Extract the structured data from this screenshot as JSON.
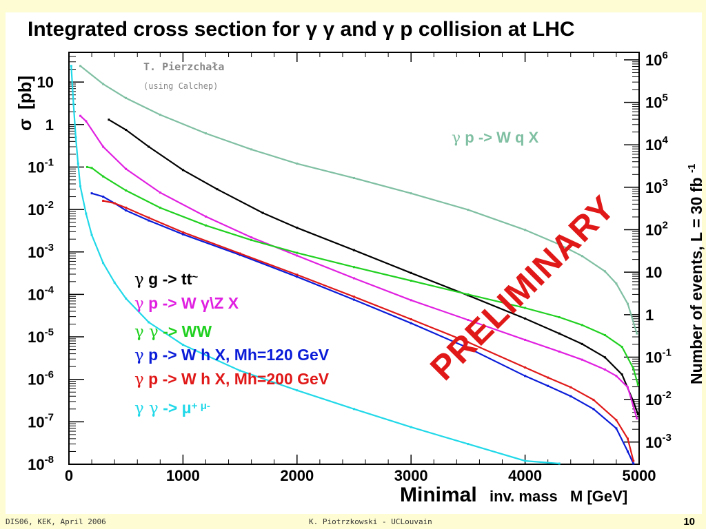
{
  "slide": {
    "footer_left": "DIS06, KEK, April 2006",
    "footer_center": "K. Piotrzkowski - UCLouvain",
    "page_number": "10"
  },
  "chart_data": {
    "type": "line",
    "title_parts": [
      "Integrated cross section for ",
      "γ γ",
      " and ",
      "γ",
      " p collision at LHC"
    ],
    "xlabel_parts": [
      "Minimal",
      "inv. mass",
      "M [GeV]"
    ],
    "ylabel_parts": [
      "σ",
      "[pb]"
    ],
    "y2label_parts": [
      "Number of events,  L = 30 fb",
      "-1"
    ],
    "author_line1": "T. Pierzchała",
    "author_line2": "(using Calchep)",
    "watermark": "PRELIMINARY",
    "xlim": [
      0,
      5000
    ],
    "ylim_log10": [
      -8,
      1.7
    ],
    "y_scale": "log",
    "x_ticks": [
      "0",
      "1000",
      "2000",
      "3000",
      "4000",
      "5000"
    ],
    "y_ticks": [
      {
        "base": "10",
        "exp": "-8"
      },
      {
        "base": "10",
        "exp": "-7"
      },
      {
        "base": "10",
        "exp": "-6"
      },
      {
        "base": "10",
        "exp": "-5"
      },
      {
        "base": "10",
        "exp": "-4"
      },
      {
        "base": "10",
        "exp": "-3"
      },
      {
        "base": "10",
        "exp": "-2"
      },
      {
        "base": "10",
        "exp": "-1"
      },
      {
        "base": "1",
        "exp": ""
      },
      {
        "base": "10",
        "exp": ""
      }
    ],
    "y2_ticks": [
      {
        "base": "10",
        "exp": "-3"
      },
      {
        "base": "10",
        "exp": "-2"
      },
      {
        "base": "10",
        "exp": "-1"
      },
      {
        "base": "1",
        "exp": ""
      },
      {
        "base": "10",
        "exp": ""
      },
      {
        "base": "10",
        "exp": "2"
      },
      {
        "base": "10",
        "exp": "3"
      },
      {
        "base": "10",
        "exp": "4"
      },
      {
        "base": "10",
        "exp": "5"
      },
      {
        "base": "10",
        "exp": "6"
      }
    ],
    "series": [
      {
        "name": "γ p -> W q X",
        "color": "#7fbfa2",
        "x": [
          100,
          300,
          500,
          800,
          1200,
          1600,
          2000,
          2500,
          3000,
          3500,
          4000,
          4300,
          4500,
          4700,
          4800,
          4900,
          4980
        ],
        "y": [
          24,
          9,
          4.2,
          1.7,
          0.62,
          0.26,
          0.12,
          0.055,
          0.024,
          0.0098,
          0.0033,
          0.0015,
          0.0008,
          0.00035,
          0.00018,
          6e-05,
          1.2e-05
        ]
      },
      {
        "name": "γ g -> tt~",
        "color": "#000000",
        "x": [
          350,
          500,
          700,
          1000,
          1300,
          1700,
          2000,
          2500,
          3000,
          3500,
          4000,
          4300,
          4500,
          4700,
          4850,
          4950,
          4990
        ],
        "y": [
          1.3,
          0.75,
          0.3,
          0.085,
          0.03,
          0.0083,
          0.0037,
          0.0011,
          0.00032,
          9.5e-05,
          2.7e-05,
          1.2e-05,
          6.8e-06,
          3.3e-06,
          1.3e-06,
          3e-07,
          1.5e-07
        ]
      },
      {
        "name": "γ p -> W γ\\Z X",
        "color": "#e020e0",
        "x": [
          100,
          150,
          300,
          500,
          800,
          1200,
          1600,
          2000,
          2500,
          3000,
          3500,
          4000,
          4300,
          4500,
          4700,
          4800,
          4900,
          4980
        ],
        "y": [
          1.6,
          1.2,
          0.3,
          0.09,
          0.025,
          0.0068,
          0.0022,
          0.00082,
          0.00024,
          7.3e-05,
          2.5e-05,
          8.5e-06,
          4.5e-06,
          2.9e-06,
          1.7e-06,
          1.2e-06,
          6.5e-07,
          1.2e-07
        ]
      },
      {
        "name": "γ γ -> WW",
        "color": "#20d020",
        "x": [
          160,
          200,
          300,
          500,
          800,
          1200,
          1600,
          2000,
          2500,
          3000,
          3500,
          4000,
          4300,
          4500,
          4700,
          4850,
          4950,
          4990
        ],
        "y": [
          0.1,
          0.095,
          0.06,
          0.028,
          0.011,
          0.0042,
          0.0019,
          0.00095,
          0.00044,
          0.00021,
          0.0001,
          4.8e-05,
          2.9e-05,
          1.9e-05,
          1.1e-05,
          5.8e-06,
          1.8e-06,
          7.5e-07
        ]
      },
      {
        "name": "γ p -> W h X, Mh=120 GeV",
        "color": "#0a1cd8",
        "x": [
          200,
          300,
          400,
          500,
          700,
          1000,
          1500,
          2000,
          2500,
          3000,
          3500,
          4000,
          4200,
          4400,
          4600,
          4800,
          4900,
          4950
        ],
        "y": [
          0.024,
          0.02,
          0.014,
          0.0095,
          0.0055,
          0.0026,
          0.00085,
          0.00026,
          7.5e-05,
          2.1e-05,
          5.5e-06,
          1.2e-06,
          7e-07,
          4e-07,
          2e-07,
          7e-08,
          2e-08,
          9.8e-09
        ]
      },
      {
        "name": "γ p -> W h X, Mh=200 GeV",
        "color": "#e01818",
        "x": [
          300,
          400,
          500,
          700,
          1000,
          1500,
          2000,
          2500,
          3000,
          3500,
          4000,
          4200,
          4400,
          4600,
          4800,
          4900,
          4950
        ],
        "y": [
          0.016,
          0.014,
          0.011,
          0.0064,
          0.0029,
          0.00092,
          0.00029,
          8.8e-05,
          2.6e-05,
          7.5e-06,
          1.9e-06,
          1.1e-06,
          6.5e-07,
          3.3e-07,
          1.1e-07,
          4e-08,
          1.2e-08
        ]
      },
      {
        "name": "γ γ -> μ+ μ-",
        "color": "#20d8e8",
        "x": [
          20,
          40,
          60,
          80,
          100,
          150,
          200,
          300,
          400,
          500,
          700,
          1000,
          1500,
          2000,
          2500,
          3000,
          3500,
          4000,
          4300
        ],
        "y": [
          24,
          3,
          0.5,
          0.12,
          0.035,
          0.008,
          0.0025,
          0.00055,
          0.00019,
          8e-05,
          2.2e-05,
          6.5e-06,
          1.6e-06,
          5.5e-07,
          2e-07,
          7.5e-08,
          3e-08,
          1.2e-08,
          8e-09
        ]
      }
    ],
    "legend": [
      {
        "greek": "γ",
        "text": " g -> tt",
        "tail": "~",
        "color": "#000000"
      },
      {
        "greek": "γ",
        "text": " p -> W γ\\Z X",
        "tail": "",
        "color": "#e020e0"
      },
      {
        "greek": "γ γ",
        "text": " -> WW",
        "tail": "",
        "color": "#20d020"
      },
      {
        "greek": "γ",
        "text": " p -> W h X, Mh=120 GeV",
        "tail": "",
        "color": "#0a1cd8"
      },
      {
        "greek": "γ",
        "text": " p -> W h X, Mh=200 GeV",
        "tail": "",
        "color": "#e01818"
      },
      {
        "greek": "γ γ",
        "text": " -> μ",
        "tail": "+ μ-",
        "color": "#20d8e8"
      }
    ],
    "wqx_label": {
      "greek": "γ",
      "text": " p -> W q X",
      "color": "#7fbfa2"
    },
    "grid": false
  }
}
